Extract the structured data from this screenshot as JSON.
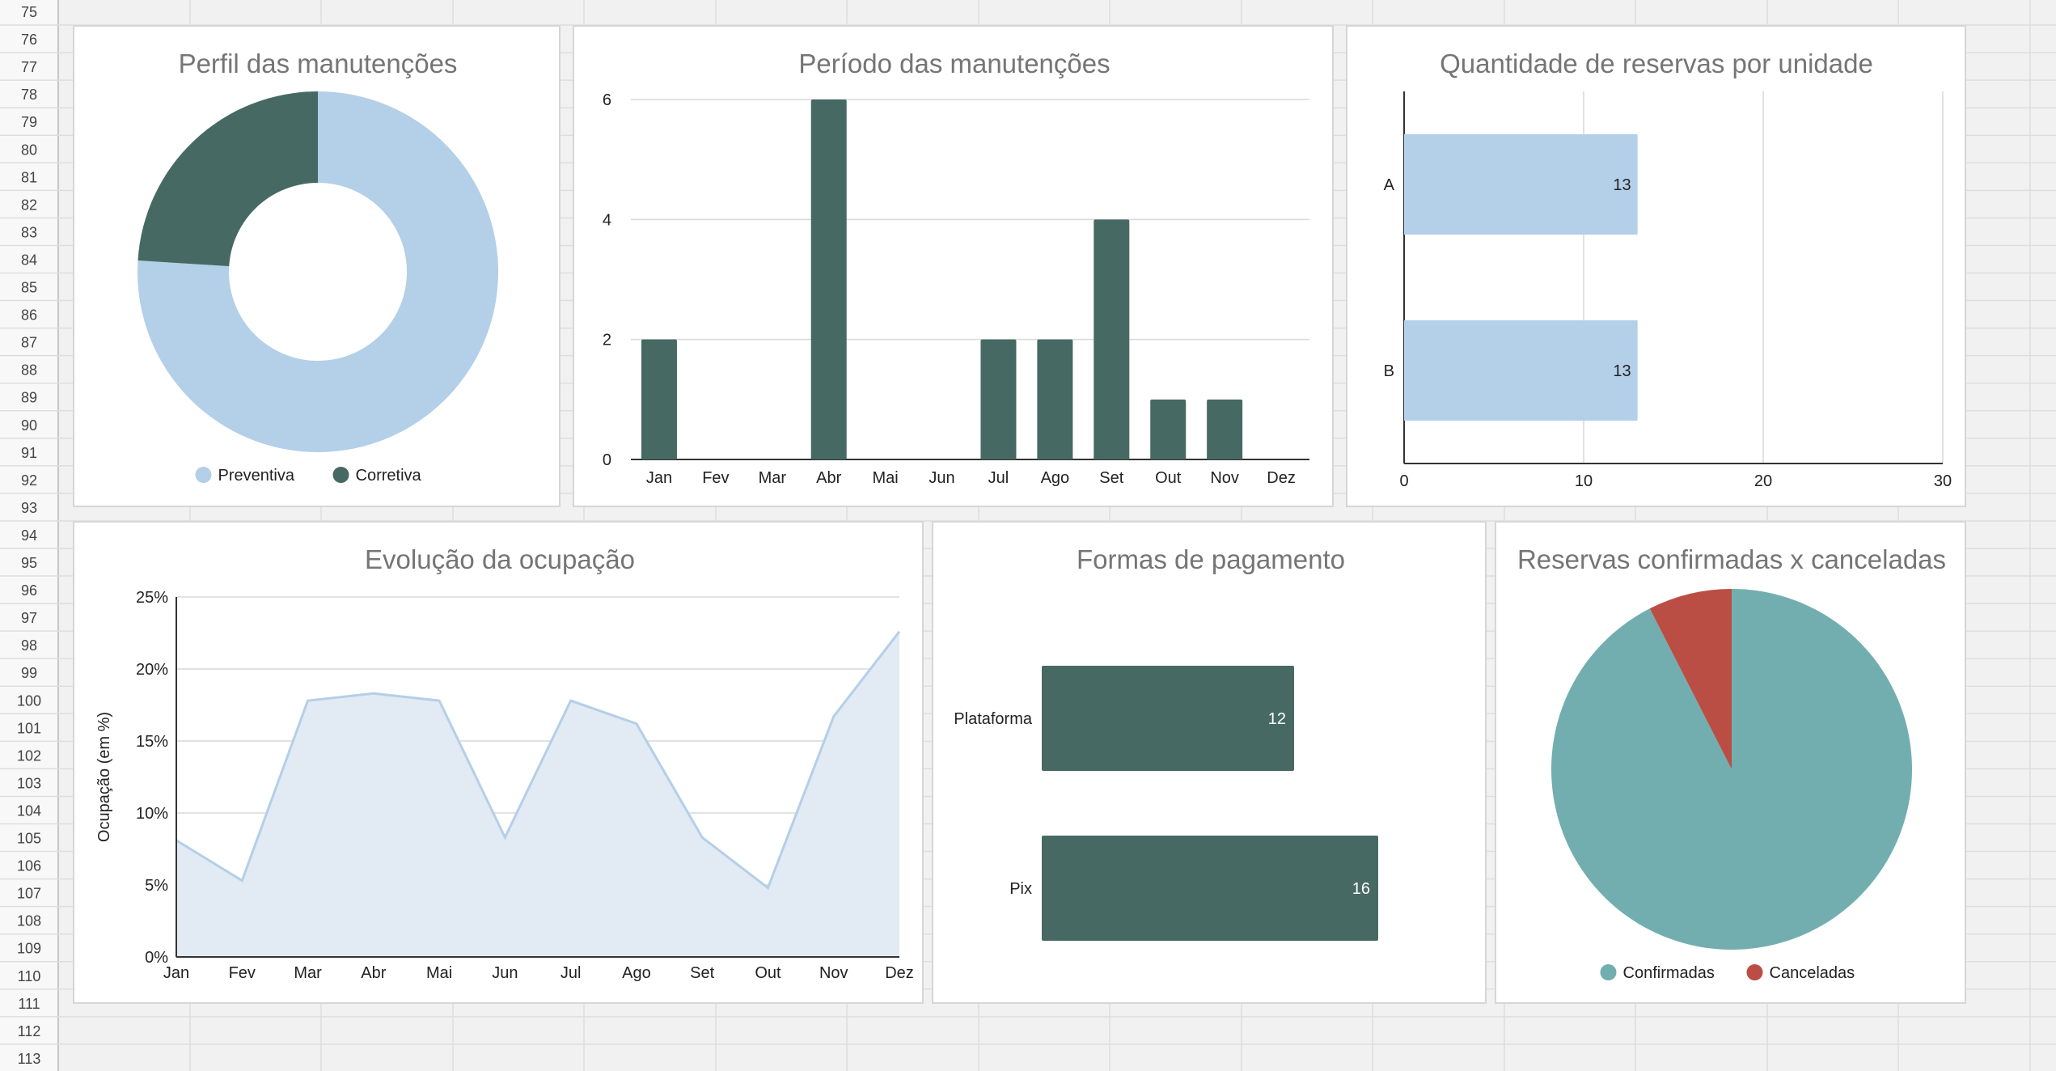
{
  "sheet": {
    "row_numbers": [
      "75",
      "76",
      "77",
      "78",
      "79",
      "80",
      "81",
      "82",
      "83",
      "84",
      "85",
      "86",
      "87",
      "88",
      "89",
      "90",
      "91",
      "92",
      "93",
      "94",
      "95",
      "96",
      "97",
      "98",
      "99",
      "100",
      "101",
      "102",
      "103",
      "104",
      "105",
      "106",
      "107",
      "108",
      "109",
      "110",
      "111",
      "112",
      "113"
    ]
  },
  "colors": {
    "light_blue": "#b4cfe8",
    "dark_green": "#466a63",
    "teal": "#72aeaf",
    "red": "#bb4e44",
    "area_fill": "#e2eaf4",
    "gridline": "#d9d9d9"
  },
  "chart_data": [
    {
      "id": "perfil",
      "type": "pie",
      "donut": true,
      "title": "Perfil das manutenções",
      "slices": [
        {
          "label": "Preventiva",
          "value": 76
        },
        {
          "label": "Corretiva",
          "value": 24
        }
      ],
      "legend": "bottom"
    },
    {
      "id": "periodo",
      "type": "bar",
      "title": "Período das manutenções",
      "categories": [
        "Jan",
        "Fev",
        "Mar",
        "Abr",
        "Mai",
        "Jun",
        "Jul",
        "Ago",
        "Set",
        "Out",
        "Nov",
        "Dez"
      ],
      "values": [
        2,
        0,
        0,
        6,
        0,
        0,
        2,
        2,
        4,
        1,
        1,
        0
      ],
      "yticks": [
        "0",
        "2",
        "4",
        "6"
      ],
      "ylim": [
        0,
        6
      ],
      "grid": true
    },
    {
      "id": "reservas_unidade",
      "type": "bar",
      "orientation": "horizontal",
      "title": "Quantidade de reservas por unidade",
      "categories": [
        "A",
        "B"
      ],
      "values": [
        13,
        13
      ],
      "data_labels": [
        "13",
        "13"
      ],
      "xticks": [
        "0",
        "10",
        "20",
        "30"
      ],
      "xlim": [
        0,
        30
      ],
      "grid": true
    },
    {
      "id": "ocupacao",
      "type": "area",
      "title": "Evolução da ocupação",
      "ylabel": "Ocupação (em %)",
      "x": [
        "Jan",
        "Fev",
        "Mar",
        "Abr",
        "Mai",
        "Jun",
        "Jul",
        "Ago",
        "Set",
        "Out",
        "Nov",
        "Dez"
      ],
      "values": [
        8.1,
        5.3,
        17.8,
        18.3,
        17.8,
        8.3,
        17.8,
        16.2,
        8.3,
        4.8,
        16.7,
        22.6
      ],
      "yticks": [
        "0%",
        "5%",
        "10%",
        "15%",
        "20%",
        "25%"
      ],
      "ylim": [
        0,
        25
      ],
      "grid": true
    },
    {
      "id": "pagamento",
      "type": "bar",
      "orientation": "horizontal",
      "title": "Formas de pagamento",
      "categories": [
        "Plataforma",
        "Pix"
      ],
      "values": [
        12,
        16
      ],
      "data_labels": [
        "12",
        "16"
      ]
    },
    {
      "id": "confirmadas",
      "type": "pie",
      "title": "Reservas confirmadas x canceladas",
      "slices": [
        {
          "label": "Confirmadas",
          "value": 92.5
        },
        {
          "label": "Canceladas",
          "value": 7.5
        }
      ],
      "legend": "bottom"
    }
  ]
}
